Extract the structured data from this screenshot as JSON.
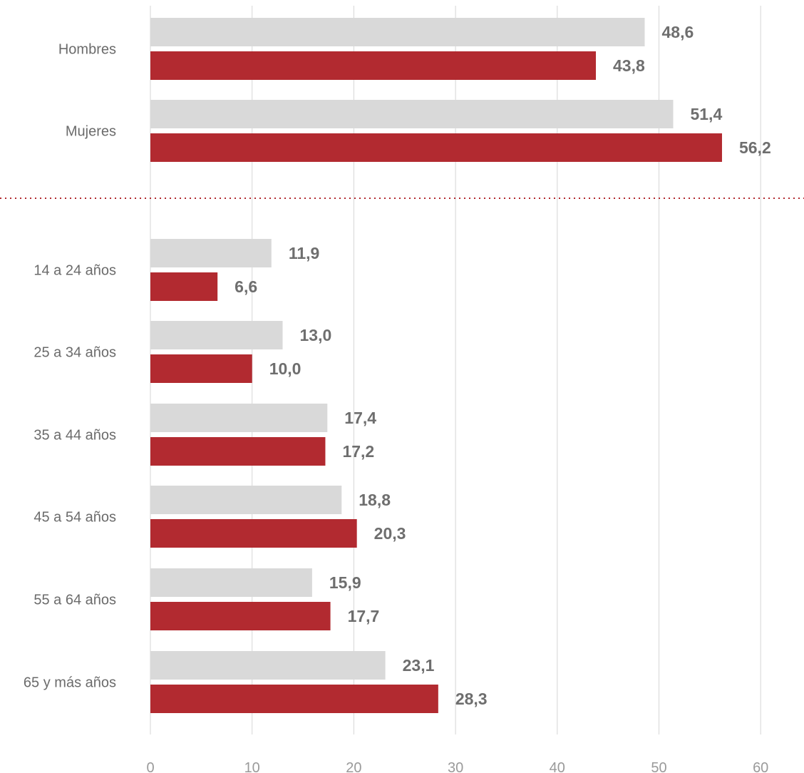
{
  "chart_data": {
    "type": "bar",
    "orientation": "horizontal",
    "xlim": [
      0,
      60
    ],
    "ticks": [
      0,
      10,
      20,
      30,
      40,
      50,
      60
    ],
    "tick_labels": [
      "0",
      "10",
      "20",
      "30",
      "40",
      "50",
      "60"
    ],
    "grid": "vertical",
    "categories": [
      "Hombres",
      "Mujeres",
      "14 a 24 años",
      "25 a 34 años",
      "35 a 44 años",
      "45 a 54 años",
      "55 a 64 años",
      "65 y más años"
    ],
    "groups_separator_after_index": 1,
    "series": [
      {
        "color": "#d9d9d9",
        "values": [
          48.6,
          51.4,
          11.9,
          13.0,
          17.4,
          18.8,
          15.9,
          23.1
        ],
        "labels": [
          "48,6",
          "51,4",
          "11,9",
          "13,0",
          "17,4",
          "18,8",
          "15,9",
          "23,1"
        ]
      },
      {
        "color": "#b22a30",
        "values": [
          43.8,
          56.2,
          6.6,
          10.0,
          17.2,
          20.3,
          17.7,
          28.3
        ],
        "labels": [
          "43,8",
          "56,2",
          "6,6",
          "10,0",
          "17,2",
          "20,3",
          "17,7",
          "28,3"
        ]
      }
    ],
    "colors": {
      "grid": "#d6d6d6",
      "separator": "#b22a30",
      "category_text": "#6b6b6b",
      "tick_text": "#9a9a9a",
      "value_text": "#6e6e6e"
    }
  }
}
